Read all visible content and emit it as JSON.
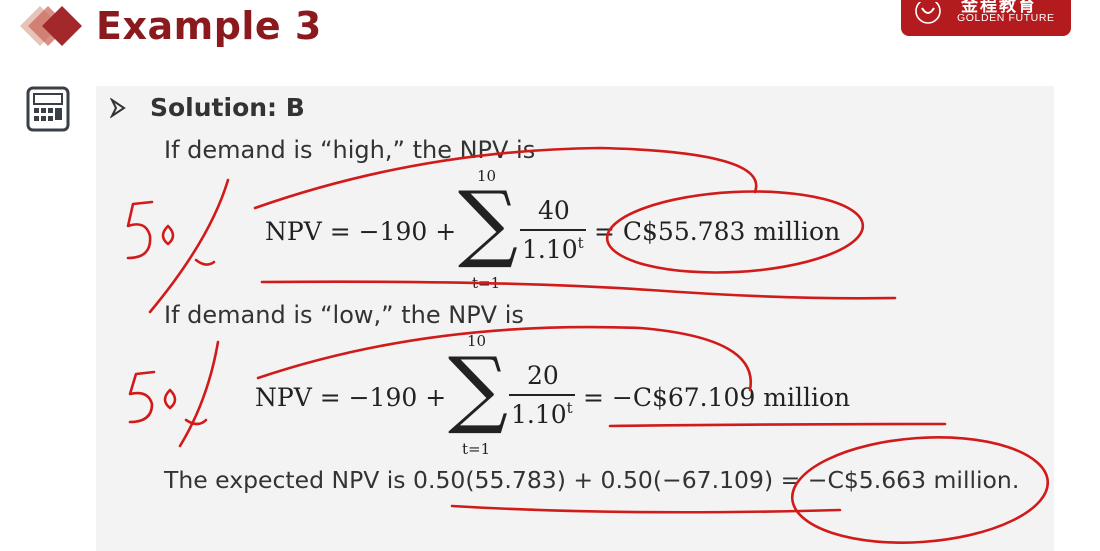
{
  "colors": {
    "title": "#8b1a1e",
    "brand_bg": "#b31b1f",
    "text": "#333333",
    "math": "#222222",
    "annotation": "#d11a1a",
    "panel_bg": "#f3f3f3",
    "diamond_dark": "#a3282b",
    "diamond_light": "#e8c3b8"
  },
  "header": {
    "title": "Example 3",
    "brand_cn": "金程教育",
    "brand_en": "GOLDEN FUTURE",
    "brand_seal": "GOLDEN FUTURE",
    "logo_icon": "diamond-logo-icon"
  },
  "sidebar": {
    "icon": "calculator-icon"
  },
  "content": {
    "heading": "Solution: B",
    "high_intro": "If demand is “high,” the NPV is",
    "high_eq": {
      "lhs": "NPV = −190 +",
      "sum_top": "10",
      "sum_bottom": "t=1",
      "numerator": "40",
      "denominator_base": "1.10",
      "denominator_exp": "t",
      "rhs": "= C$55.783 million"
    },
    "low_intro": "If demand is “low,” the NPV is",
    "low_eq": {
      "lhs": "NPV = −190 +",
      "sum_top": "10",
      "sum_bottom": "t=1",
      "numerator": "20",
      "denominator_base": "1.10",
      "denominator_exp": "t",
      "rhs": "= −C$67.109 million"
    },
    "expected": "The expected NPV is 0.50(55.783) + 0.50(−67.109) = −C$5.663 million."
  },
  "annotations": {
    "note_high": "50%",
    "note_low": "50%"
  }
}
